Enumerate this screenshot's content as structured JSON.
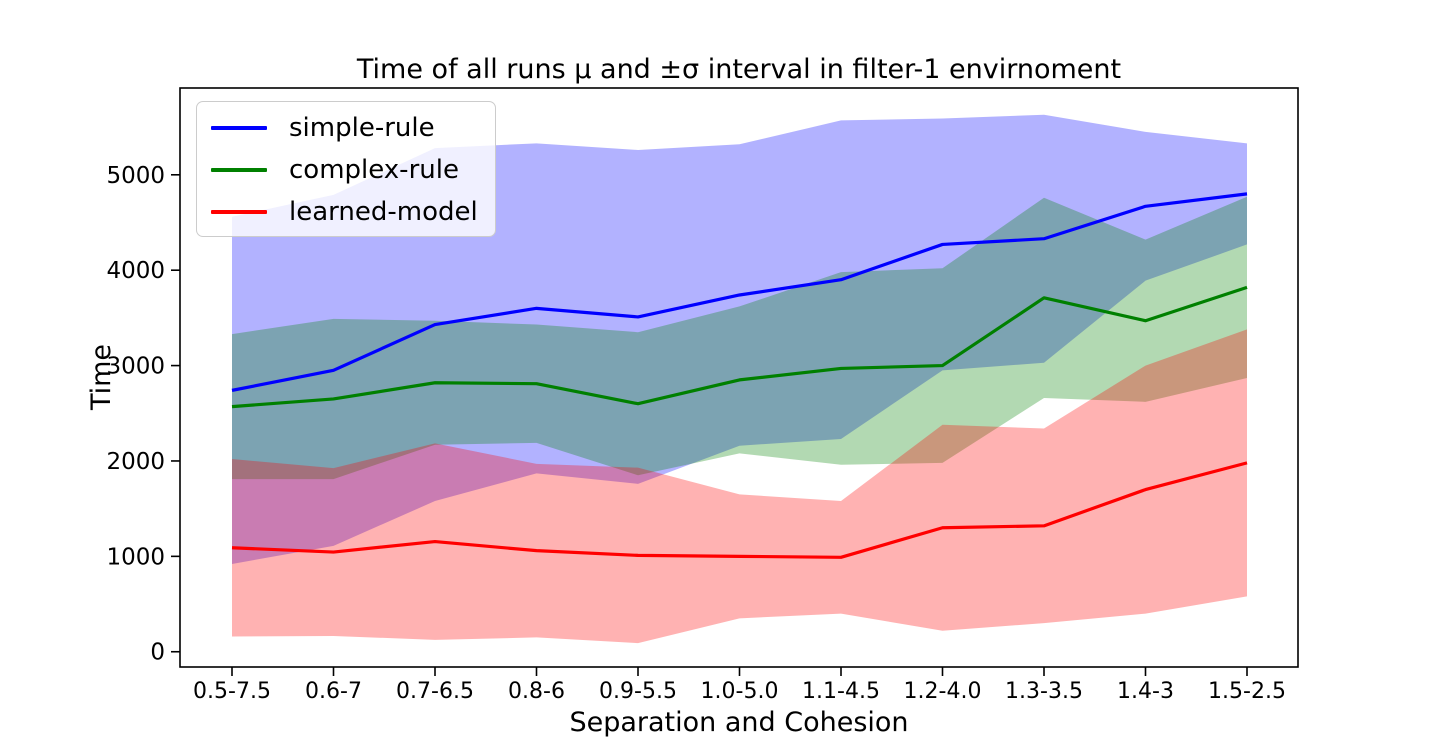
{
  "figure": {
    "title": "Time of all runs μ and ±σ interval in filter-1 envirnoment"
  },
  "chart_data": {
    "type": "line",
    "title": "Time of all runs μ and ±σ interval in filter-1 envirnoment",
    "xlabel": "Separation and Cohesion",
    "ylabel": "Time",
    "band_meaning": "mean ± one standard deviation, fill alpha 0.3",
    "legend_position": "upper left",
    "grid": false,
    "ylim": [
      -160,
      5910
    ],
    "y_ticks": [
      0,
      1000,
      2000,
      3000,
      4000,
      5000
    ],
    "categories": [
      "0.5-7.5",
      "0.6-7",
      "0.7-6.5",
      "0.8-6",
      "0.9-5.5",
      "1.0-5.0",
      "1.1-4.5",
      "1.2-4.0",
      "1.3-3.5",
      "1.4-3",
      "1.5-2.5"
    ],
    "series": [
      {
        "name": "simple-rule",
        "color": "#0000ff",
        "mu": [
          2740,
          2950,
          3430,
          3600,
          3510,
          3740,
          3900,
          4270,
          4330,
          4670,
          4800
        ],
        "sigma": [
          1820,
          1840,
          1850,
          1730,
          1750,
          1580,
          1670,
          1320,
          1300,
          780,
          530
        ]
      },
      {
        "name": "complex-rule",
        "color": "#008000",
        "mu": [
          2570,
          2650,
          2820,
          2810,
          2600,
          2850,
          2970,
          3000,
          3710,
          3470,
          3820
        ],
        "sigma": [
          760,
          840,
          650,
          620,
          750,
          770,
          1010,
          1020,
          1050,
          850,
          950
        ]
      },
      {
        "name": "learned-model",
        "color": "#ff0000",
        "mu": [
          1090,
          1045,
          1155,
          1060,
          1010,
          1000,
          990,
          1300,
          1320,
          1700,
          1980
        ],
        "sigma": [
          930,
          880,
          1030,
          910,
          920,
          650,
          590,
          1080,
          1020,
          1300,
          1400
        ]
      }
    ]
  }
}
